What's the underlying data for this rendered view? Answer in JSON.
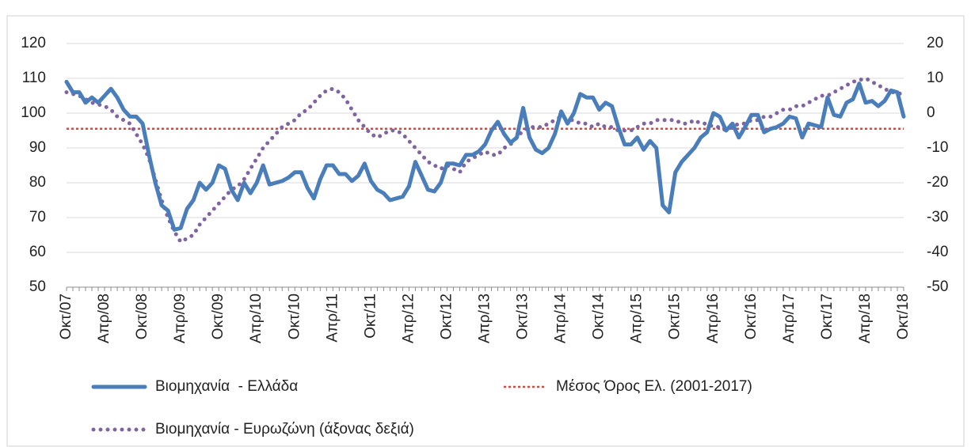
{
  "chart_data": {
    "type": "line",
    "categories": [
      "Οκτ/07",
      null,
      null,
      null,
      null,
      null,
      "Απρ/08",
      null,
      null,
      null,
      null,
      null,
      "Οκτ/08",
      null,
      null,
      null,
      null,
      null,
      "Απρ/09",
      null,
      null,
      null,
      null,
      null,
      "Οκτ/09",
      null,
      null,
      null,
      null,
      null,
      "Απρ/10",
      null,
      null,
      null,
      null,
      null,
      "Οκτ/10",
      null,
      null,
      null,
      null,
      null,
      "Απρ/11",
      null,
      null,
      null,
      null,
      null,
      "Οκτ/11",
      null,
      null,
      null,
      null,
      null,
      "Απρ/12",
      null,
      null,
      null,
      null,
      null,
      "Οκτ/12",
      null,
      null,
      null,
      null,
      null,
      "Απρ/13",
      null,
      null,
      null,
      null,
      null,
      "Οκτ/13",
      null,
      null,
      null,
      null,
      null,
      "Απρ/14",
      null,
      null,
      null,
      null,
      null,
      "Οκτ/14",
      null,
      null,
      null,
      null,
      null,
      "Απρ/15",
      null,
      null,
      null,
      null,
      null,
      "Οκτ/15",
      null,
      null,
      null,
      null,
      null,
      "Απρ/16",
      null,
      null,
      null,
      null,
      null,
      "Οκτ/16",
      null,
      null,
      null,
      null,
      null,
      "Απρ/17",
      null,
      null,
      null,
      null,
      null,
      "Οκτ/17",
      null,
      null,
      null,
      null,
      null,
      "Απρ/18",
      null,
      null,
      null,
      null,
      null,
      "Οκτ/18"
    ],
    "series": [
      {
        "name": "Βιομηχανία  - Ελλάδα",
        "color": "#4a7ebb",
        "style": "solid",
        "axis": "y",
        "values": [
          109,
          106,
          106,
          103,
          104.5,
          103,
          105,
          107,
          104.5,
          101,
          99,
          99,
          97,
          88,
          80,
          73.5,
          72,
          66.5,
          67,
          72.5,
          75,
          80,
          78,
          80,
          85,
          84,
          78,
          75,
          80,
          77,
          80,
          85,
          79.5,
          80,
          80.5,
          81.5,
          83,
          83,
          78.5,
          75.5,
          81,
          85,
          85,
          82.5,
          82.5,
          80.5,
          82,
          85.5,
          80.5,
          78,
          77,
          75,
          75.5,
          76,
          79,
          86,
          82,
          78,
          77.5,
          80,
          85.5,
          85.5,
          85,
          88,
          88,
          89,
          91,
          95,
          97.5,
          94,
          91.5,
          93,
          101.5,
          93,
          89.5,
          88.5,
          90,
          94,
          100.5,
          97,
          100,
          105.5,
          104.5,
          104.5,
          101,
          103,
          102,
          96,
          91,
          91,
          93,
          89.5,
          92,
          90,
          73.5,
          71.5,
          83,
          86,
          88,
          90,
          93,
          94.5,
          100,
          99,
          95,
          97,
          93,
          96,
          99.5,
          99.5,
          94.5,
          95.5,
          96,
          97,
          99,
          98.5,
          93,
          97,
          96.5,
          96,
          104.5,
          99.5,
          99,
          103,
          104,
          108.5,
          103,
          103.5,
          102,
          103.5,
          106.5,
          106,
          99
        ]
      },
      {
        "name": "Βιομηχανία - Ευρωζώνη (άξονας δεξιά)",
        "color": "#8064a2",
        "style": "dotted",
        "axis": "y2",
        "values": [
          6,
          5.5,
          5,
          4,
          3,
          2.5,
          2,
          1,
          -1,
          -2,
          -3,
          -6,
          -9,
          -13,
          -19,
          -25,
          -30,
          -34,
          -37,
          -36,
          -35,
          -32,
          -30,
          -28,
          -26,
          -24,
          -22,
          -21,
          -19,
          -16,
          -13,
          -10,
          -8,
          -6,
          -4,
          -3,
          -2,
          0,
          1,
          3,
          5,
          6.5,
          7,
          6,
          4,
          1,
          -2,
          -4,
          -6,
          -7,
          -6,
          -5,
          -5,
          -6,
          -8,
          -10,
          -12,
          -14,
          -15,
          -16,
          -15,
          -16,
          -17,
          -14,
          -13,
          -12,
          -11,
          -12,
          -12,
          -10,
          -9,
          -7,
          -5,
          -4,
          -4,
          -4,
          -3,
          -2,
          -1,
          -2,
          -2,
          -3,
          -3,
          -4,
          -3,
          -4,
          -4,
          -5,
          -5,
          -5,
          -4,
          -3,
          -3,
          -2,
          -2,
          -2,
          -2,
          -3,
          -3,
          -2,
          -3,
          -3,
          -4,
          -4,
          -5,
          -4,
          -3,
          -3,
          -2,
          -2,
          -1,
          -1,
          0,
          1,
          1,
          2,
          2,
          3,
          4,
          5,
          5,
          6,
          7,
          8,
          9,
          9.5,
          10,
          9,
          8,
          7,
          6,
          6,
          5
        ]
      }
    ],
    "reference_line": {
      "name": "Μέσος Όρος Ελ. (2001-2017)",
      "color": "#c0504d",
      "value": 95.5
    },
    "ylim": [
      50,
      120
    ],
    "yticks": [
      50,
      60,
      70,
      80,
      90,
      100,
      110,
      120
    ],
    "y2lim": [
      -50,
      20
    ],
    "y2ticks": [
      -50,
      -40,
      -30,
      -20,
      -10,
      0,
      10,
      20
    ],
    "grid": true
  }
}
